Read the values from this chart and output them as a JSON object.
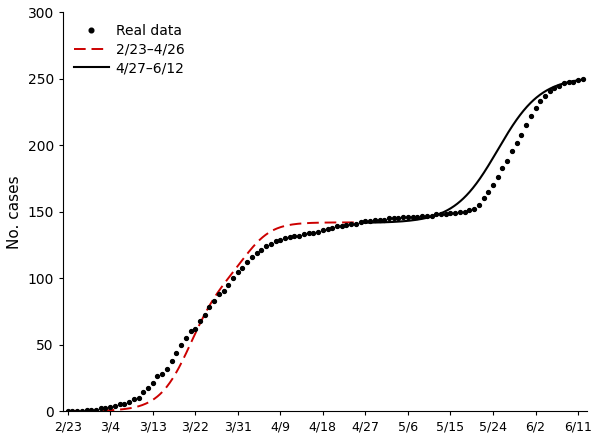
{
  "title": "",
  "ylabel": "No. cases",
  "xlabel": "",
  "ylim": [
    0,
    300
  ],
  "yticks": [
    0,
    50,
    100,
    150,
    200,
    250,
    300
  ],
  "background_color": "#ffffff",
  "dot_color": "#000000",
  "curve1_color": "#cc0000",
  "curve2_color": "#000000",
  "legend_labels": [
    "Real data",
    "2/23–4/26",
    "4/27–6/12"
  ],
  "real_data_days": [
    0,
    1,
    2,
    3,
    4,
    5,
    6,
    7,
    8,
    9,
    10,
    11,
    12,
    13,
    14,
    15,
    16,
    17,
    18,
    19,
    20,
    21,
    22,
    23,
    24,
    25,
    26,
    27,
    28,
    29,
    30,
    31,
    32,
    33,
    34,
    35,
    36,
    37,
    38,
    39,
    40,
    41,
    42,
    43,
    44,
    45,
    46,
    47,
    48,
    49,
    50,
    51,
    52,
    53,
    54,
    55,
    56,
    57,
    58,
    59,
    60,
    61,
    62,
    63,
    64,
    65,
    66,
    67,
    68,
    69,
    70,
    71,
    72,
    73,
    74,
    75,
    76,
    77,
    78,
    79,
    80,
    81,
    82,
    83,
    84,
    85,
    86,
    87,
    88,
    89,
    90,
    91,
    92,
    93,
    94,
    95,
    96,
    97,
    98,
    99,
    100,
    101,
    102,
    103,
    104,
    105,
    106,
    107,
    108,
    109
  ],
  "real_data_vals": [
    0,
    0,
    0,
    0,
    1,
    1,
    1,
    2,
    2,
    3,
    4,
    5,
    5,
    7,
    9,
    10,
    14,
    17,
    21,
    26,
    28,
    32,
    38,
    44,
    50,
    55,
    60,
    62,
    68,
    72,
    78,
    83,
    88,
    90,
    95,
    100,
    105,
    108,
    112,
    116,
    119,
    121,
    124,
    126,
    128,
    129,
    130,
    131,
    132,
    132,
    133,
    134,
    134,
    135,
    136,
    137,
    138,
    139,
    139,
    140,
    141,
    141,
    142,
    143,
    143,
    144,
    144,
    144,
    145,
    145,
    145,
    146,
    146,
    146,
    146,
    147,
    147,
    147,
    148,
    148,
    148,
    149,
    149,
    150,
    150,
    151,
    152,
    155,
    160,
    165,
    170,
    176,
    183,
    188,
    196,
    202,
    208,
    215,
    222,
    228,
    233,
    237,
    241,
    243,
    245,
    247,
    248,
    248,
    249,
    250
  ],
  "curve1_params": {
    "K": 141.5,
    "t0": 28.0,
    "r": 0.28,
    "nu": 1.2
  },
  "curve2_params": {
    "K_add": 110.0,
    "t0": 92.0,
    "r": 0.22,
    "nu": 1.0
  },
  "curve1_day_end": 62,
  "curve2_day_start": 63,
  "curve2_day_end": 109,
  "xtick_labels": [
    "2/23",
    "3/4",
    "3/13",
    "3/22",
    "3/31",
    "4/9",
    "4/18",
    "4/27",
    "5/6",
    "5/15",
    "5/24",
    "6/2",
    "6/11"
  ],
  "xtick_days": [
    0,
    9,
    18,
    27,
    36,
    45,
    54,
    63,
    72,
    81,
    90,
    99,
    108
  ],
  "xlim": [
    -1,
    110
  ]
}
